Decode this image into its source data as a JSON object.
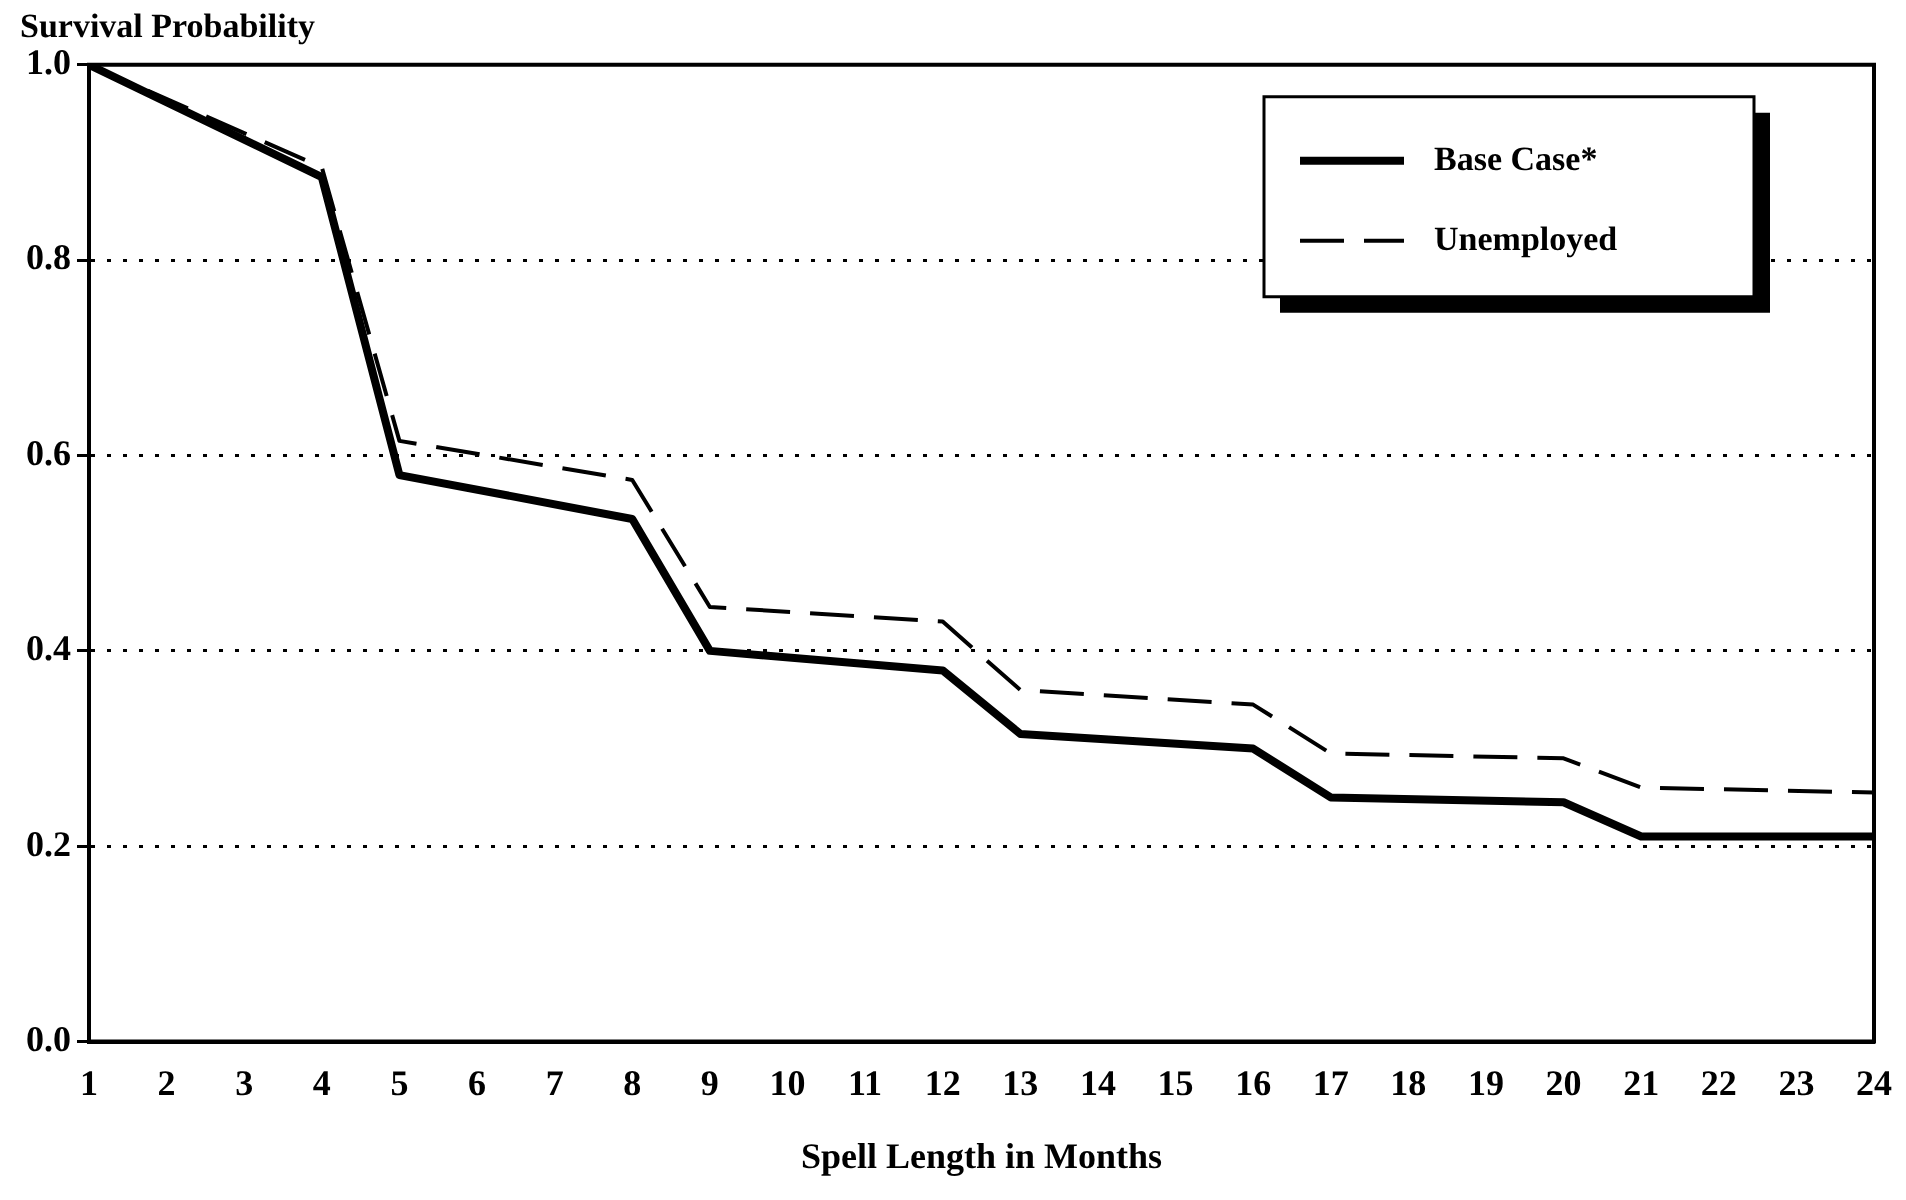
{
  "chart_data": {
    "type": "line",
    "xlabel": "Spell Length in Months",
    "ylabel": "Survival Probability",
    "xlim": [
      1,
      24
    ],
    "xticks": [
      1,
      2,
      3,
      4,
      5,
      6,
      7,
      8,
      9,
      10,
      11,
      12,
      13,
      14,
      15,
      16,
      17,
      18,
      19,
      20,
      21,
      22,
      23,
      24
    ],
    "ylim": [
      0,
      1
    ],
    "yticks": [
      {
        "value": 0,
        "label": "0.0"
      },
      0.2,
      0.4,
      0.6,
      0.8,
      {
        "value": 1,
        "label": "1.0"
      }
    ],
    "grid": "y",
    "legend": "top right",
    "marker": "none",
    "series": [
      {
        "name": "Base Case*",
        "color": "#000000",
        "line_style": "solid",
        "x": [
          1,
          4,
          5,
          8,
          9,
          12,
          13,
          16,
          17,
          20,
          21,
          24
        ],
        "values": [
          1.0,
          0.885,
          0.58,
          0.535,
          0.4,
          0.38,
          0.315,
          0.3,
          0.25,
          0.245,
          0.21,
          0.21
        ]
      },
      {
        "name": "Unemployed",
        "color": "#000000",
        "line_style": "dashed",
        "x": [
          1,
          4,
          5,
          8,
          9,
          12,
          13,
          16,
          17,
          20,
          21,
          24
        ],
        "values": [
          1.0,
          0.895,
          0.615,
          0.575,
          0.445,
          0.43,
          0.36,
          0.345,
          0.295,
          0.29,
          0.26,
          0.255
        ]
      }
    ]
  }
}
